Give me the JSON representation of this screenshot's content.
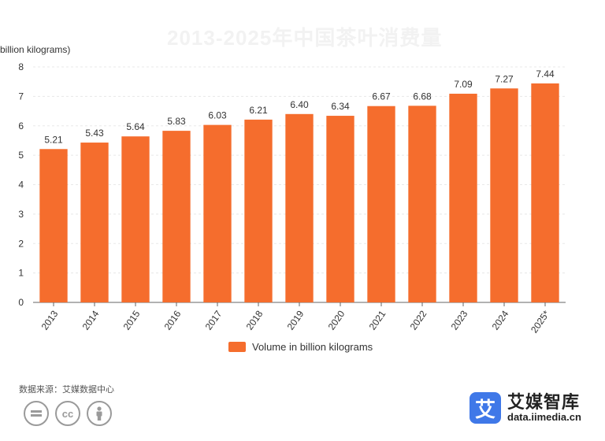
{
  "watermark_title": "2013-2025年中国茶叶消费量",
  "source_text": "数据来源：艾媒数据中心",
  "brand": {
    "logo_char": "艾",
    "name": "艾媒智库",
    "url": "data.iimedia.cn"
  },
  "license_icons": [
    "equals-icon",
    "cc-icon",
    "person-icon"
  ],
  "colors": {
    "bar": "#f56d2d",
    "axis": "#666666",
    "grid": "#e8e8e8"
  },
  "chart_data": {
    "type": "bar",
    "ylabel": "billion kilograms)",
    "ylim": [
      0,
      8
    ],
    "yticks": [
      0,
      1,
      2,
      3,
      4,
      5,
      6,
      7,
      8
    ],
    "categories": [
      "2013",
      "2014",
      "2015",
      "2016",
      "2017",
      "2018",
      "2019",
      "2020",
      "2021",
      "2022",
      "2023",
      "2024",
      "2025*"
    ],
    "series": [
      {
        "name": "Volume in billion kilograms",
        "values": [
          5.21,
          5.43,
          5.64,
          5.83,
          6.03,
          6.21,
          6.4,
          6.34,
          6.67,
          6.68,
          7.09,
          7.27,
          7.44
        ]
      }
    ],
    "data_labels": [
      "5.21",
      "5.43",
      "5.64",
      "5.83",
      "6.03",
      "6.21",
      "6.40",
      "6.34",
      "6.67",
      "6.68",
      "7.09",
      "7.27",
      "7.44"
    ],
    "legend_position": "bottom",
    "grid": true
  }
}
